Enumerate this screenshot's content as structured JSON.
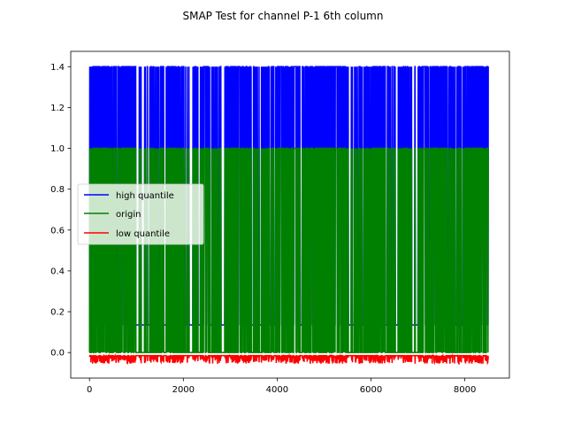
{
  "chart_data": {
    "type": "line",
    "title": "SMAP Test for channel P-1 6th column",
    "xlabel": "",
    "ylabel": "",
    "xlim": [
      -400,
      8950
    ],
    "ylim": [
      -0.125,
      1.475
    ],
    "x_ticks": [
      0,
      2000,
      4000,
      6000,
      8000
    ],
    "y_ticks": [
      0.0,
      0.2,
      0.4,
      0.6,
      0.8,
      1.0,
      1.2,
      1.4
    ],
    "x_tick_labels": [
      "0",
      "2000",
      "4000",
      "6000",
      "8000"
    ],
    "y_tick_labels": [
      "0.0",
      "0.2",
      "0.4",
      "0.6",
      "0.8",
      "1.0",
      "1.2",
      "1.4"
    ],
    "x_max": 8500,
    "grid": false,
    "legend_position": "center-left",
    "series": [
      {
        "name": "high quantile",
        "color": "#0000ff",
        "low_value": 0.135,
        "high_value": 1.4
      },
      {
        "name": "origin",
        "color": "#008000",
        "low_value": 0.0,
        "high_value": 1.0
      },
      {
        "name": "low quantile",
        "color": "#ff0000",
        "low_value": -0.015,
        "high_value": -0.055
      }
    ],
    "dense_regions": [
      [
        0,
        1000
      ],
      [
        1500,
        1800
      ],
      [
        2400,
        2550
      ],
      [
        2900,
        3450
      ],
      [
        4000,
        5500
      ],
      [
        6000,
        6300
      ],
      [
        7000,
        7600
      ],
      [
        8000,
        8500
      ]
    ]
  }
}
